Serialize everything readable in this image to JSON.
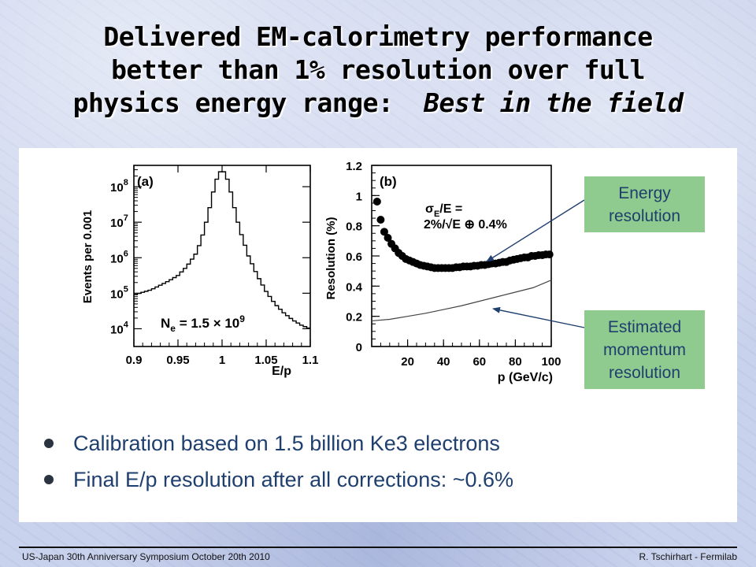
{
  "slide": {
    "title_lines": [
      "Delivered EM-calorimetry performance",
      "better than 1% resolution over full",
      "physics energy range:"
    ],
    "title_emphasis": "Best in the field",
    "callouts": {
      "energy": [
        "Energy",
        "resolution"
      ],
      "momentum": [
        "Estimated",
        "momentum",
        "resolution"
      ]
    },
    "bullets": [
      "Calibration based on 1.5 billion Ke3 electrons",
      "Final E/p resolution after all corrections: ~0.6%"
    ],
    "footer_left": "US-Japan 30th Anniversary Symposium  October 20th 2010",
    "footer_right": "R. Tschirhart - Fermilab",
    "colors": {
      "callout_bg": "#8fcb8f",
      "callout_text": "#1f3f6e",
      "bullet_text": "#1f3f6e",
      "arrow": "#1f3f6e"
    }
  },
  "chart_data": [
    {
      "type": "line",
      "panel_label": "(a)",
      "xlabel": "E/p",
      "ylabel": "Events per 0.001",
      "xlim": [
        0.9,
        1.1
      ],
      "ylim_log10": [
        3.5,
        8.6
      ],
      "log_y": true,
      "xticks": [
        "0.9",
        "0.95",
        "1",
        "1.05",
        "1.1"
      ],
      "yticks": [
        {
          "base": "10",
          "exp": "4",
          "log10": 4
        },
        {
          "base": "10",
          "exp": "5",
          "log10": 5
        },
        {
          "base": "10",
          "exp": "6",
          "log10": 6
        },
        {
          "base": "10",
          "exp": "7",
          "log10": 7
        },
        {
          "base": "10",
          "exp": "8",
          "log10": 8
        }
      ],
      "annotation": {
        "pre": "N",
        "sub": "e",
        "mid": " = 1.5 × 10",
        "sup": "9"
      },
      "series": [
        {
          "x": [
            0.9,
            0.92,
            0.94,
            0.95,
            0.96,
            0.97,
            0.975,
            0.98,
            0.985,
            0.99,
            0.995,
            1.0,
            1.005,
            1.01,
            1.015,
            1.02,
            1.03,
            1.04,
            1.05,
            1.06,
            1.07,
            1.08,
            1.09,
            1.1
          ],
          "y_log10": [
            4.95,
            5.1,
            5.35,
            5.5,
            5.75,
            6.1,
            6.4,
            6.8,
            7.3,
            7.85,
            8.3,
            8.5,
            8.3,
            7.85,
            7.3,
            6.8,
            6.05,
            5.5,
            5.05,
            4.7,
            4.45,
            4.25,
            4.1,
            4.0
          ]
        }
      ]
    },
    {
      "type": "scatter",
      "panel_label": "(b)",
      "xlabel": "p (GeV/c)",
      "ylabel": "Resolution (%)",
      "xlim": [
        0,
        100
      ],
      "ylim": [
        0,
        1.2
      ],
      "xticks": [
        "20",
        "40",
        "60",
        "80",
        "100"
      ],
      "yticks": [
        "0",
        "0.2",
        "0.4",
        "0.6",
        "0.8",
        "1",
        "1.2"
      ],
      "formula": {
        "line1": "σ",
        "line1_sub": "E",
        "line1_rest": "/E =",
        "line2": "2%/√E ⊕ 0.4%"
      },
      "series": [
        {
          "type": "scatter",
          "x": [
            3,
            5,
            7,
            9,
            11,
            13,
            15,
            17,
            19,
            21,
            23,
            25,
            27,
            29,
            31,
            33,
            35,
            37,
            39,
            41,
            43,
            45,
            47,
            49,
            51,
            53,
            55,
            57,
            59,
            61,
            63,
            65,
            67,
            69,
            71,
            73,
            75,
            77,
            79,
            81,
            83,
            85,
            87,
            89,
            91,
            93,
            95,
            97,
            99
          ],
          "y": [
            0.96,
            0.84,
            0.76,
            0.72,
            0.68,
            0.65,
            0.62,
            0.6,
            0.58,
            0.57,
            0.56,
            0.55,
            0.54,
            0.535,
            0.53,
            0.525,
            0.52,
            0.52,
            0.52,
            0.52,
            0.52,
            0.52,
            0.525,
            0.525,
            0.53,
            0.53,
            0.53,
            0.535,
            0.535,
            0.54,
            0.54,
            0.545,
            0.55,
            0.55,
            0.555,
            0.56,
            0.56,
            0.57,
            0.575,
            0.58,
            0.585,
            0.59,
            0.59,
            0.6,
            0.6,
            0.605,
            0.605,
            0.61,
            0.61
          ]
        },
        {
          "type": "line",
          "x": [
            0,
            10,
            20,
            30,
            40,
            50,
            60,
            70,
            80,
            90,
            100
          ],
          "y": [
            0.17,
            0.18,
            0.2,
            0.22,
            0.245,
            0.27,
            0.3,
            0.33,
            0.36,
            0.39,
            0.44
          ]
        }
      ]
    }
  ]
}
